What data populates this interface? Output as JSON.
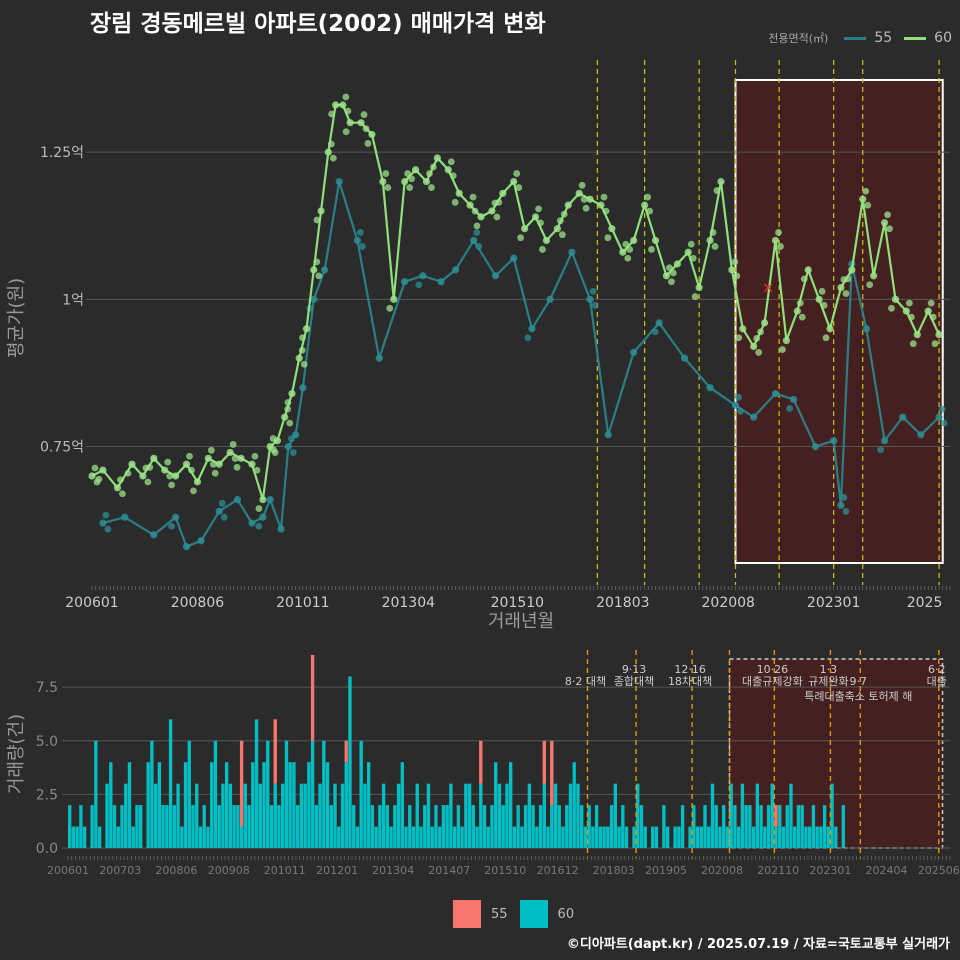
{
  "title": "장림 경동메르빌 아파트(2002) 매매가격 변화",
  "legend": {
    "title": "전용면적(㎡)",
    "items": [
      {
        "label": "55",
        "line_color": "#2a7f87",
        "fill_color": "#f8766d"
      },
      {
        "label": "60",
        "line_color": "#8fe07a",
        "fill_color": "#00bfc4"
      }
    ]
  },
  "footer": "©디아파트(dapt.kr) / 2025.07.19 / 자료=국토교통부 실거래가",
  "colors": {
    "background": "#2b2b2b",
    "grid": "#555555",
    "policy_line": "#d4c400",
    "highlight_fill": "#4a1f1f",
    "highlight_border": "#ffffff"
  },
  "chart_data": [
    {
      "type": "line",
      "title": "",
      "xlabel": "거래년월",
      "ylabel": "평균가(원)",
      "x_tick_labels": [
        "200601",
        "200806",
        "201011",
        "201304",
        "201510",
        "201803",
        "202008",
        "202301",
        "2025"
      ],
      "y_tick_labels": [
        "0.75억",
        "1억",
        "1.25억"
      ],
      "ylim": [
        0.52,
        1.42
      ],
      "grid": true,
      "policy_dates": [
        "2017-08",
        "2018-09",
        "2019-12",
        "2020-10",
        "2021-10",
        "2023-01",
        "2023-09",
        "2025-06"
      ],
      "highlight_range": [
        "2020-10",
        "2025-07"
      ],
      "marker": {
        "label": "×",
        "date": "2021-07",
        "value": 1.02
      },
      "series": [
        {
          "name": "55",
          "x": [
            "2006-04",
            "2006-10",
            "2007-06",
            "2007-12",
            "2008-03",
            "2008-07",
            "2008-12",
            "2009-05",
            "2009-09",
            "2009-12",
            "2010-02",
            "2010-05",
            "2010-07",
            "2010-09",
            "2010-11",
            "2011-02",
            "2011-05",
            "2011-09",
            "2012-02",
            "2012-08",
            "2013-03",
            "2013-08",
            "2014-01",
            "2014-05",
            "2014-10",
            "2015-04",
            "2015-09",
            "2016-02",
            "2016-07",
            "2017-01",
            "2017-06",
            "2017-11",
            "2018-06",
            "2019-01",
            "2019-08",
            "2020-03",
            "2020-10",
            "2021-03",
            "2021-09",
            "2022-02",
            "2022-08",
            "2023-01",
            "2023-03",
            "2023-06",
            "2023-10",
            "2024-03",
            "2024-08",
            "2025-01",
            "2025-06"
          ],
          "values": [
            0.62,
            0.63,
            0.6,
            0.63,
            0.58,
            0.59,
            0.64,
            0.66,
            0.62,
            0.63,
            0.66,
            0.61,
            0.75,
            0.77,
            0.85,
            1.0,
            1.05,
            1.2,
            1.1,
            0.9,
            1.03,
            1.04,
            1.03,
            1.05,
            1.1,
            1.04,
            1.07,
            0.95,
            1.0,
            1.08,
            1.0,
            0.77,
            0.91,
            0.96,
            0.9,
            0.85,
            0.82,
            0.8,
            0.84,
            0.83,
            0.75,
            0.76,
            0.65,
            1.06,
            0.95,
            0.76,
            0.8,
            0.77,
            0.8
          ]
        },
        {
          "name": "60",
          "x": [
            "2006-01",
            "2006-04",
            "2006-08",
            "2006-12",
            "2007-03",
            "2007-06",
            "2007-09",
            "2007-12",
            "2008-03",
            "2008-06",
            "2008-09",
            "2008-12",
            "2009-03",
            "2009-06",
            "2009-09",
            "2009-12",
            "2010-02",
            "2010-04",
            "2010-06",
            "2010-08",
            "2010-10",
            "2010-12",
            "2011-02",
            "2011-04",
            "2011-06",
            "2011-08",
            "2011-10",
            "2011-12",
            "2012-03",
            "2012-06",
            "2012-09",
            "2012-12",
            "2013-03",
            "2013-06",
            "2013-09",
            "2013-12",
            "2014-03",
            "2014-06",
            "2014-09",
            "2014-12",
            "2015-03",
            "2015-06",
            "2015-09",
            "2015-12",
            "2016-03",
            "2016-06",
            "2016-09",
            "2016-12",
            "2017-03",
            "2017-06",
            "2017-09",
            "2017-12",
            "2018-03",
            "2018-06",
            "2018-09",
            "2018-12",
            "2019-03",
            "2019-06",
            "2019-09",
            "2019-12",
            "2020-03",
            "2020-06",
            "2020-09",
            "2020-12",
            "2021-03",
            "2021-06",
            "2021-09",
            "2021-12",
            "2022-03",
            "2022-06",
            "2022-09",
            "2022-12",
            "2023-03",
            "2023-06",
            "2023-09",
            "2023-12",
            "2024-03",
            "2024-06",
            "2024-09",
            "2024-12",
            "2025-03",
            "2025-06"
          ],
          "values": [
            0.7,
            0.71,
            0.68,
            0.72,
            0.7,
            0.73,
            0.71,
            0.7,
            0.72,
            0.69,
            0.73,
            0.72,
            0.74,
            0.73,
            0.72,
            0.66,
            0.75,
            0.76,
            0.8,
            0.84,
            0.9,
            0.95,
            1.05,
            1.15,
            1.25,
            1.33,
            1.33,
            1.3,
            1.3,
            1.28,
            1.2,
            1.0,
            1.2,
            1.22,
            1.2,
            1.24,
            1.22,
            1.18,
            1.16,
            1.14,
            1.15,
            1.18,
            1.2,
            1.12,
            1.14,
            1.1,
            1.12,
            1.16,
            1.18,
            1.17,
            1.16,
            1.12,
            1.08,
            1.1,
            1.16,
            1.1,
            1.04,
            1.06,
            1.08,
            1.02,
            1.1,
            1.2,
            1.05,
            0.95,
            0.92,
            0.96,
            1.1,
            0.93,
            0.98,
            1.05,
            1.0,
            0.95,
            1.02,
            1.05,
            1.17,
            1.04,
            1.13,
            1.0,
            0.98,
            0.94,
            0.98,
            0.94
          ]
        }
      ]
    },
    {
      "type": "bar",
      "title": "",
      "xlabel": "",
      "ylabel": "거래량(건)",
      "x_tick_labels": [
        "200601",
        "200703",
        "200806",
        "200908",
        "201011",
        "201201",
        "201304",
        "201407",
        "201510",
        "201612",
        "201803",
        "201905",
        "202008",
        "202110",
        "202301",
        "202404",
        "202506"
      ],
      "y_tick_labels": [
        "0.0",
        "2.5",
        "5.0",
        "7.5"
      ],
      "ylim": [
        0,
        9
      ],
      "grid": true,
      "stacked": true,
      "policy_labels": [
        {
          "date": "2017-08",
          "label": "8·2 대책",
          "row": 1
        },
        {
          "date": "2018-09",
          "label": "9·13",
          "row": 0
        },
        {
          "date": "2018-09",
          "label": "종합대책",
          "row": 1
        },
        {
          "date": "2019-12",
          "label": "12·16",
          "row": 0
        },
        {
          "date": "2019-12",
          "label": "18차대책",
          "row": 1
        },
        {
          "date": "2021-10",
          "label": "10·26",
          "row": 0
        },
        {
          "date": "2021-10",
          "label": "대출규제강화",
          "row": 1
        },
        {
          "date": "2023-01",
          "label": "1·3",
          "row": 0
        },
        {
          "date": "2023-01",
          "label": "규제완화",
          "row": 1
        },
        {
          "date": "2023-09",
          "label": "9·7",
          "row": 1
        },
        {
          "date": "2023-09",
          "label": "특례대출축소 토허제 해",
          "row": 2
        },
        {
          "date": "2025-06",
          "label": "6·2",
          "row": 0
        },
        {
          "date": "2025-06",
          "label": "대출",
          "row": 1
        }
      ],
      "series": [
        {
          "name": "55",
          "peaks": [
            [
              "2011-06",
              9
            ],
            [
              "2010-08",
              6
            ],
            [
              "2009-11",
              5
            ],
            [
              "2012-03",
              5
            ],
            [
              "2016-08",
              5
            ],
            [
              "2016-10",
              5
            ],
            [
              "2015-03",
              5
            ],
            [
              "2021-10",
              2
            ]
          ]
        },
        {
          "name": "60",
          "values": [
            2,
            1,
            1,
            2,
            1,
            0,
            2,
            5,
            1,
            0,
            3,
            4,
            2,
            1,
            2,
            3,
            4,
            1,
            2,
            2,
            0,
            4,
            5,
            3,
            4,
            2,
            2,
            6,
            2,
            3,
            1,
            4,
            5,
            2,
            3,
            1,
            2,
            1,
            4,
            5,
            2,
            3,
            4,
            3,
            2,
            2,
            1,
            3,
            2,
            4,
            6,
            3,
            4,
            5,
            2,
            3,
            2,
            3,
            5,
            4,
            4,
            2,
            3,
            3,
            4,
            5,
            2,
            3,
            5,
            4,
            2,
            3,
            1,
            3,
            4,
            8,
            2,
            1,
            5,
            3,
            4,
            2,
            1,
            2,
            3,
            2,
            1,
            2,
            3,
            4,
            1,
            2,
            1,
            3,
            1,
            2,
            3,
            1,
            2,
            1,
            2,
            2,
            3,
            1,
            2,
            1,
            3,
            3,
            2,
            1,
            3,
            2,
            1,
            2,
            4,
            3,
            2,
            3,
            4,
            1,
            2,
            1,
            2,
            3,
            2,
            1,
            2,
            3,
            1,
            2,
            3,
            2,
            1,
            2,
            3,
            4,
            3,
            2,
            1,
            2,
            1,
            2,
            1,
            1,
            1,
            2,
            3,
            1,
            2,
            1,
            0,
            1,
            3,
            2,
            1,
            0,
            1,
            1,
            0,
            2,
            1,
            0,
            1,
            1,
            2,
            0,
            1,
            2,
            1,
            1,
            2,
            1,
            3,
            2,
            1,
            2,
            1,
            3,
            2,
            1,
            3,
            2,
            2,
            1,
            3,
            2,
            1,
            2,
            3,
            1,
            2,
            1,
            2,
            3,
            1,
            2,
            2,
            1,
            1,
            2,
            1,
            1,
            2,
            1,
            3,
            1,
            0,
            2
          ]
        }
      ]
    }
  ]
}
